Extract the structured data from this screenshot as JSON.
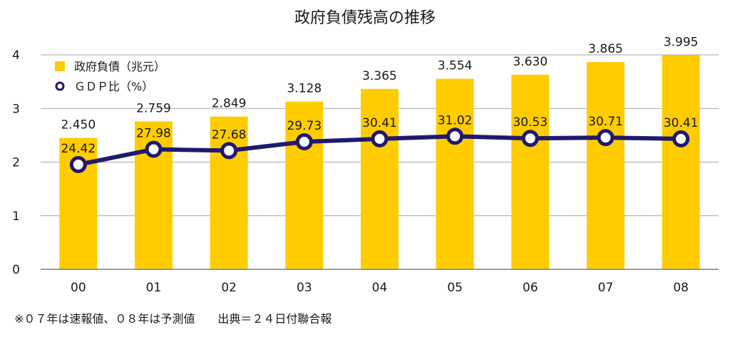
{
  "chart_data": {
    "type": "bar",
    "title": "政府負債残高の推移",
    "categories": [
      "00",
      "01",
      "02",
      "03",
      "04",
      "05",
      "06",
      "07",
      "08"
    ],
    "ylim": [
      0,
      4
    ],
    "yticks": [
      "0",
      "1",
      "2",
      "3",
      "4"
    ],
    "grid": true,
    "legend_position": "top-left",
    "series": [
      {
        "name": "政府負債（兆元）",
        "type": "bar",
        "color": "#FFCC00",
        "values": [
          2.45,
          2.759,
          2.849,
          3.128,
          3.365,
          3.554,
          3.63,
          3.865,
          3.995
        ],
        "labels": [
          "2.450",
          "2.759",
          "2.849",
          "3.128",
          "3.365",
          "3.554",
          "3.630",
          "3.865",
          "3.995"
        ]
      },
      {
        "name": "ＧＤＰ比（%）",
        "type": "line",
        "color": "#1F1A6E",
        "values": [
          24.42,
          27.98,
          27.68,
          29.73,
          30.41,
          31.02,
          30.53,
          30.71,
          30.41
        ],
        "labels": [
          "24.42",
          "27.98",
          "27.68",
          "29.73",
          "30.41",
          "31.02",
          "30.53",
          "30.71",
          "30.41"
        ]
      }
    ],
    "note": "※０７年は速報値、０８年は予測値　　出典＝２４日付聯合報"
  }
}
